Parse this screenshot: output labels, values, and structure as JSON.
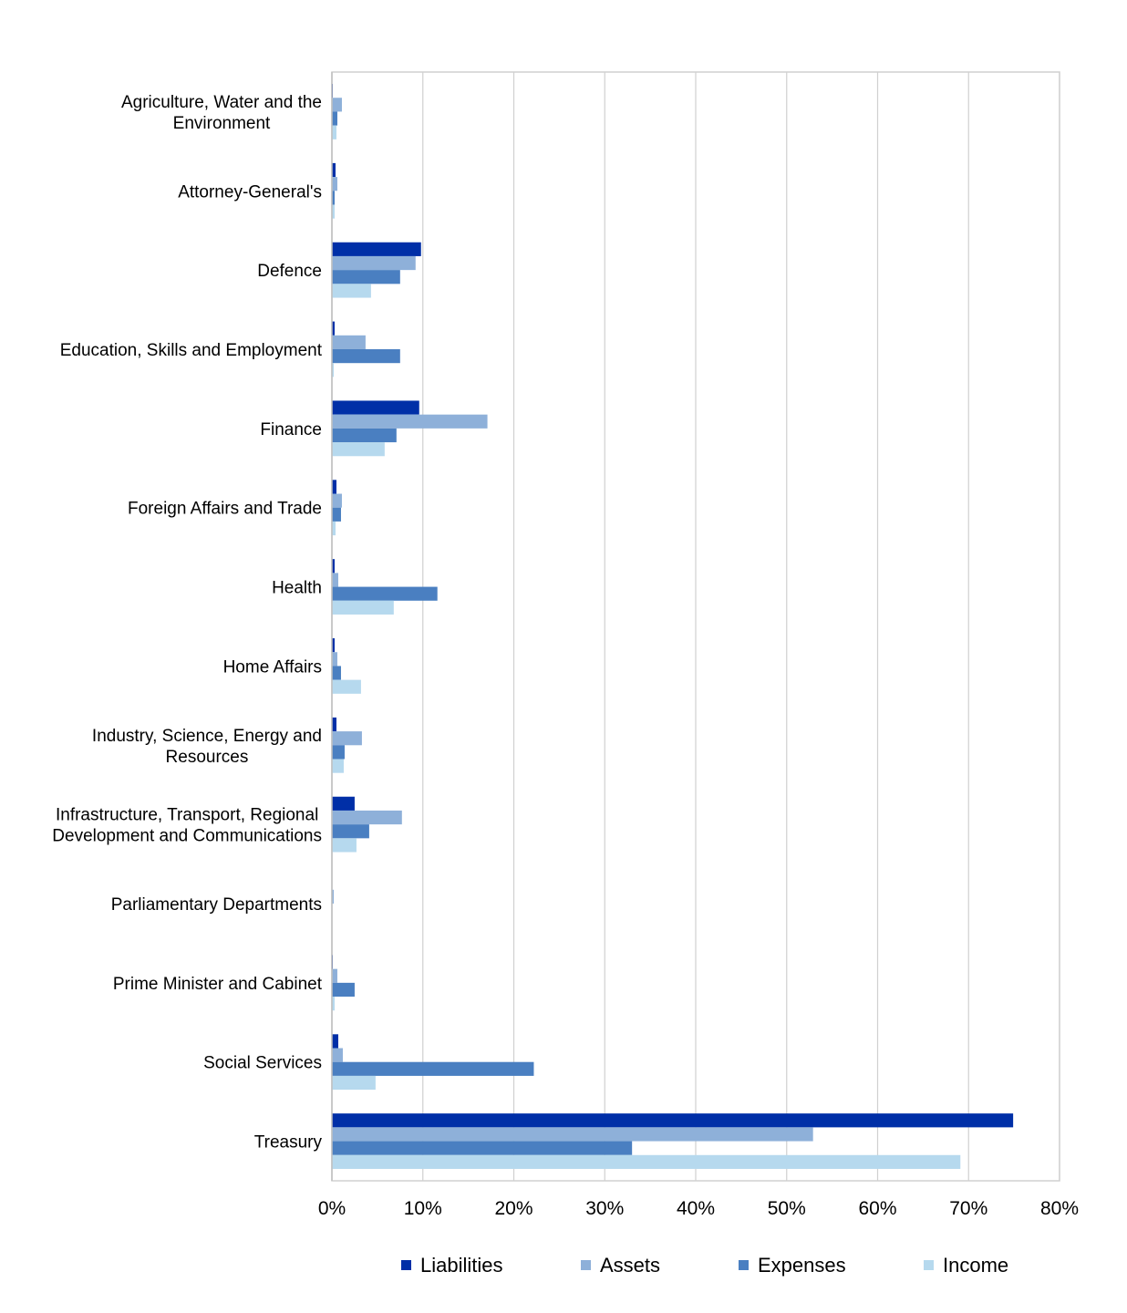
{
  "chart_data": {
    "type": "bar",
    "orientation": "horizontal",
    "categories": [
      "Agriculture, Water and the Environment",
      "Attorney-General's",
      "Defence",
      "Education, Skills and Employment",
      "Finance",
      "Foreign Affairs and Trade",
      "Health",
      "Home Affairs",
      "Industry, Science, Energy and Resources",
      "Infrastructure, Transport, Regional Development and Communications",
      "Parliamentary Departments",
      "Prime Minister and Cabinet",
      "Social Services",
      "Treasury"
    ],
    "category_lines": [
      [
        "Agriculture, Water and the",
        "Environment"
      ],
      [
        "Attorney-General's"
      ],
      [
        "Defence"
      ],
      [
        "Education, Skills and Employment"
      ],
      [
        "Finance"
      ],
      [
        "Foreign Affairs and Trade"
      ],
      [
        "Health"
      ],
      [
        "Home Affairs"
      ],
      [
        "Industry, Science, Energy and",
        "Resources"
      ],
      [
        "Infrastructure, Transport, Regional",
        "Development and Communications"
      ],
      [
        "Parliamentary Departments"
      ],
      [
        "Prime Minister and Cabinet"
      ],
      [
        "Social Services"
      ],
      [
        "Treasury"
      ]
    ],
    "series": [
      {
        "name": "Liabilities",
        "color": "#002fa7",
        "values": [
          0.1,
          0.4,
          9.8,
          0.3,
          9.6,
          0.5,
          0.3,
          0.3,
          0.5,
          2.5,
          0.0,
          0.1,
          0.7,
          74.9
        ]
      },
      {
        "name": "Assets",
        "color": "#8eb0d9",
        "values": [
          1.1,
          0.6,
          9.2,
          3.7,
          17.1,
          1.1,
          0.7,
          0.6,
          3.3,
          7.7,
          0.2,
          0.6,
          1.2,
          52.9
        ]
      },
      {
        "name": "Expenses",
        "color": "#4a7fc1",
        "values": [
          0.6,
          0.3,
          7.5,
          7.5,
          7.1,
          1.0,
          11.6,
          1.0,
          1.4,
          4.1,
          0.0,
          2.5,
          22.2,
          33.0
        ]
      },
      {
        "name": "Income",
        "color": "#b6d9ee",
        "values": [
          0.5,
          0.3,
          4.3,
          0.2,
          5.8,
          0.4,
          6.8,
          3.2,
          1.3,
          2.7,
          0.0,
          0.3,
          4.8,
          69.1
        ]
      }
    ],
    "x_ticks": [
      "0%",
      "10%",
      "20%",
      "30%",
      "40%",
      "50%",
      "60%",
      "70%",
      "80%"
    ],
    "xlim": [
      0,
      80
    ],
    "x_unit": "%",
    "grid": "vertical",
    "legend_position": "bottom",
    "title": "",
    "xlabel": "",
    "ylabel": ""
  }
}
